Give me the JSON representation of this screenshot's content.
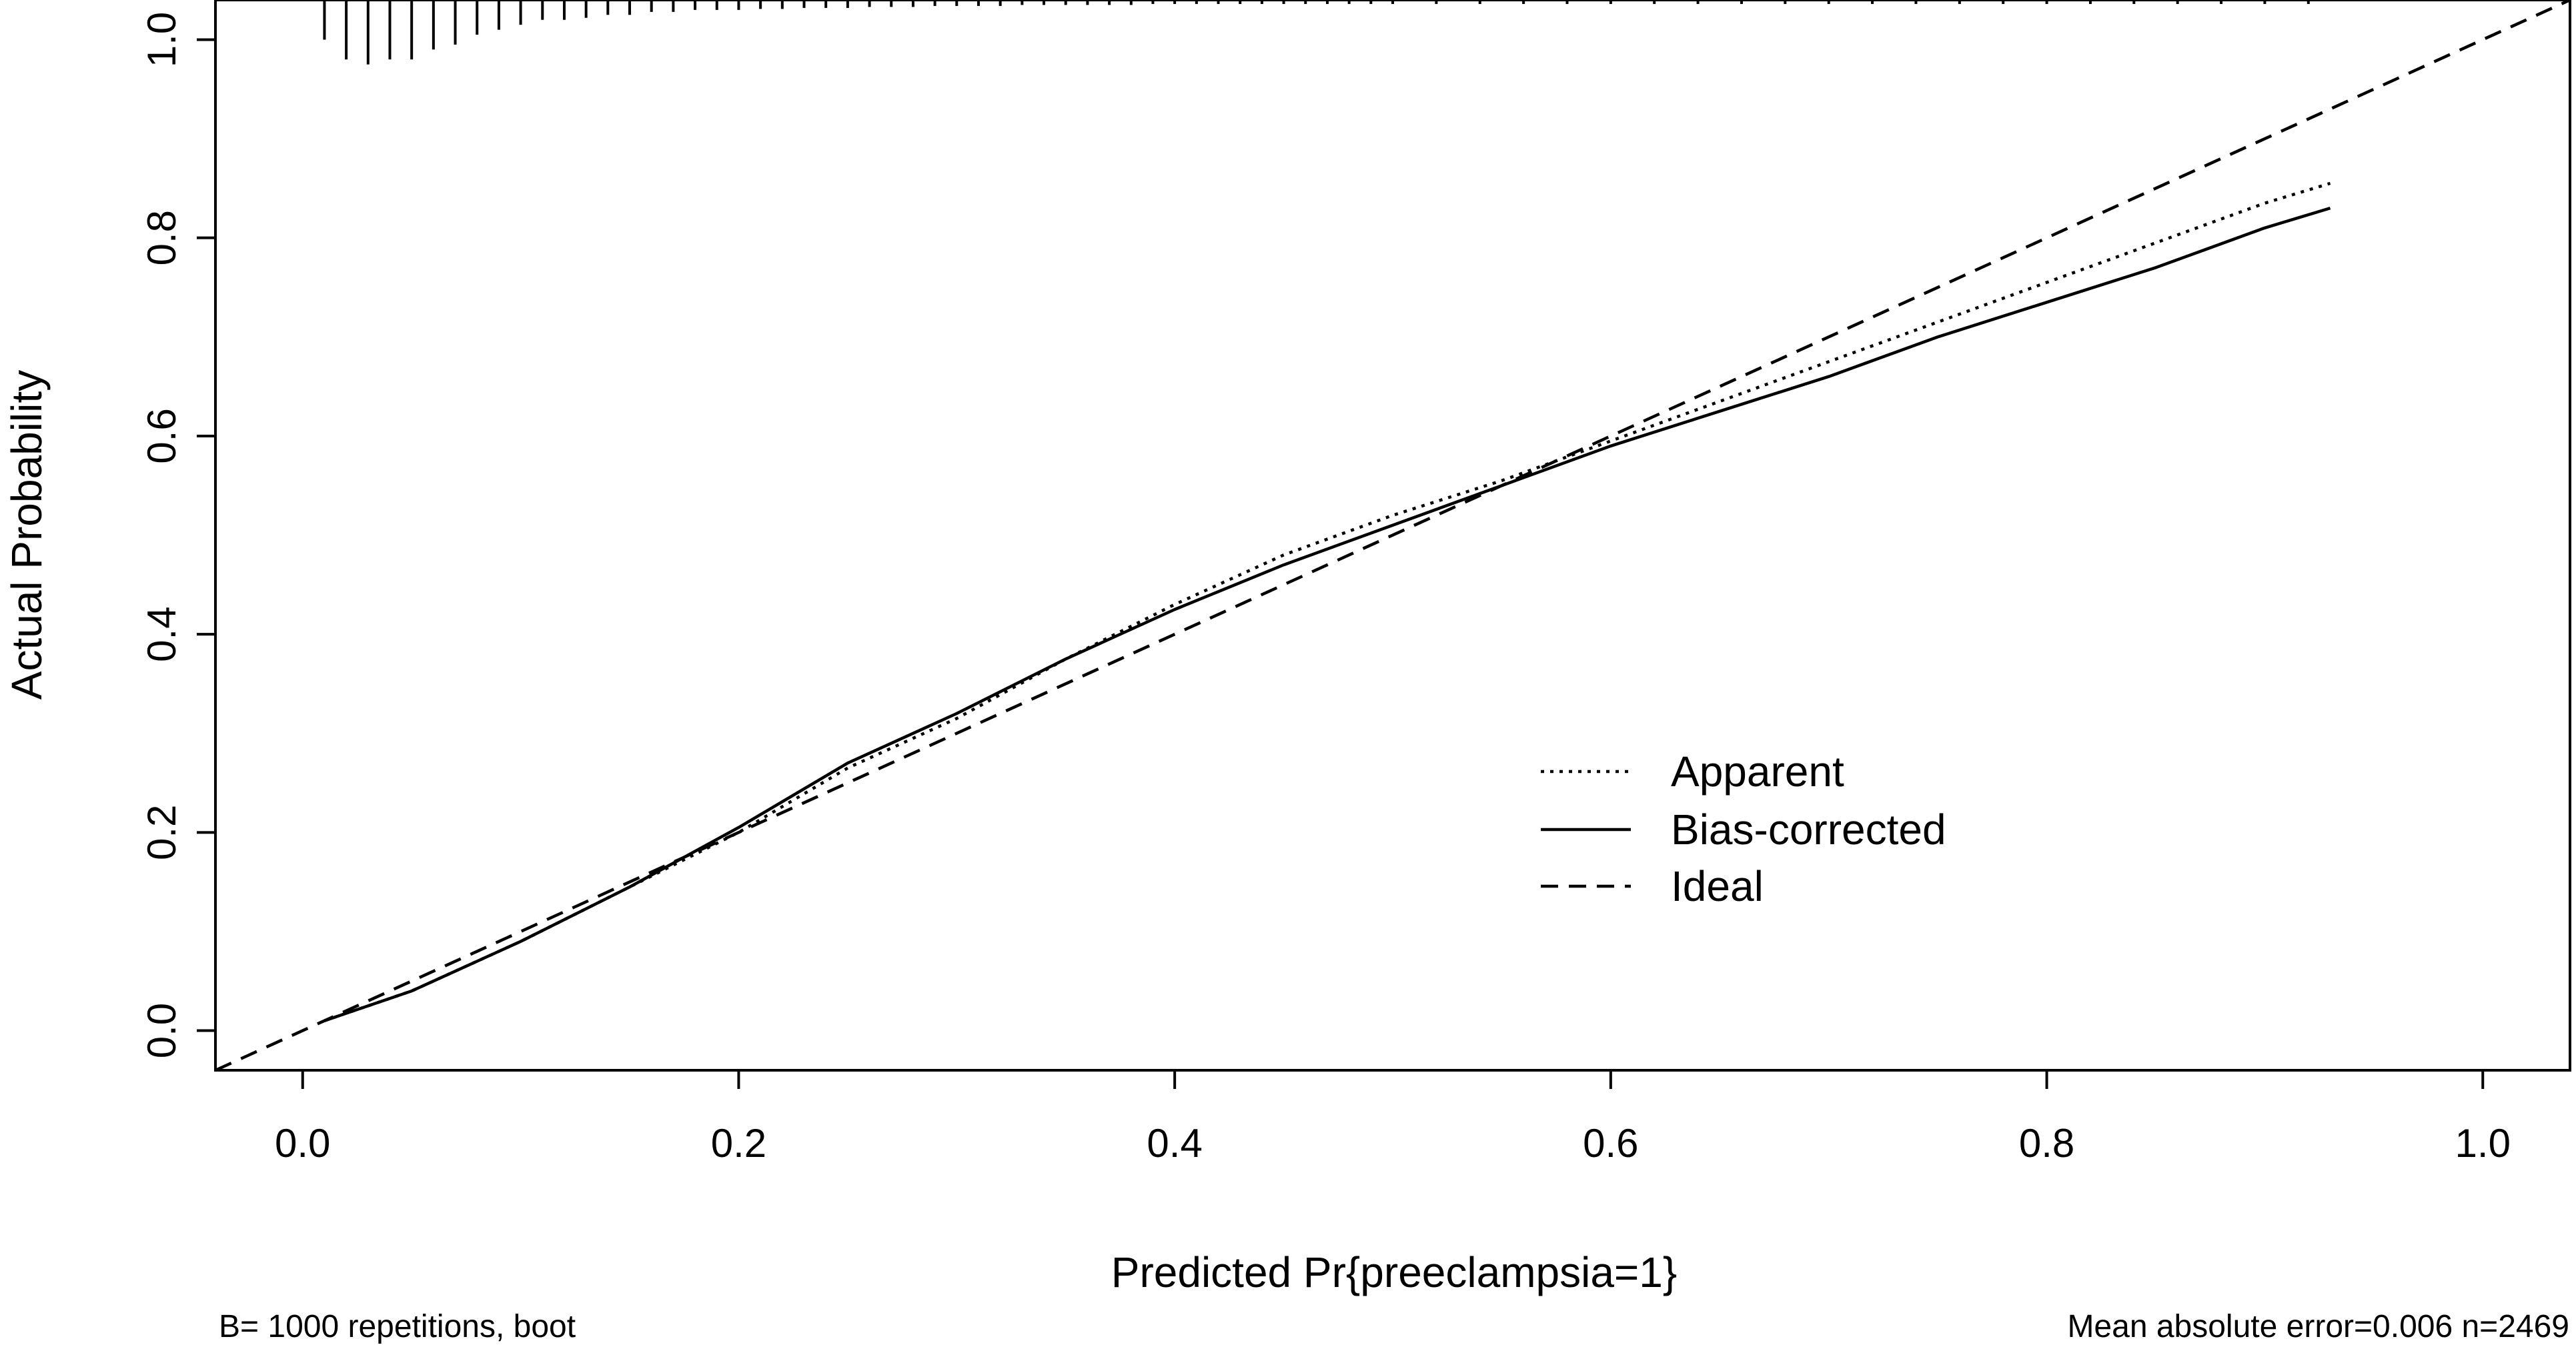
{
  "chart_data": {
    "type": "line",
    "xlabel": "Predicted Pr{preeclampsia=1}",
    "ylabel": "Actual Probability",
    "xlim": [
      -0.04,
      1.04
    ],
    "ylim": [
      -0.04,
      1.04
    ],
    "x_ticks": [
      "0.0",
      "0.2",
      "0.4",
      "0.6",
      "0.8",
      "1.0"
    ],
    "y_ticks": [
      "0.0",
      "0.2",
      "0.4",
      "0.6",
      "0.8",
      "1.0"
    ],
    "grid": false,
    "legend_position": "center-right",
    "series": [
      {
        "name": "Apparent",
        "style": "dotted",
        "points": [
          [
            0.01,
            0.01
          ],
          [
            0.05,
            0.04
          ],
          [
            0.1,
            0.09
          ],
          [
            0.15,
            0.145
          ],
          [
            0.2,
            0.2
          ],
          [
            0.25,
            0.265
          ],
          [
            0.3,
            0.315
          ],
          [
            0.35,
            0.375
          ],
          [
            0.4,
            0.43
          ],
          [
            0.45,
            0.48
          ],
          [
            0.5,
            0.52
          ],
          [
            0.55,
            0.555
          ],
          [
            0.6,
            0.595
          ],
          [
            0.65,
            0.635
          ],
          [
            0.7,
            0.675
          ],
          [
            0.75,
            0.715
          ],
          [
            0.8,
            0.755
          ],
          [
            0.85,
            0.795
          ],
          [
            0.9,
            0.835
          ],
          [
            0.93,
            0.855
          ]
        ]
      },
      {
        "name": "Bias-corrected",
        "style": "solid",
        "points": [
          [
            0.01,
            0.01
          ],
          [
            0.05,
            0.04
          ],
          [
            0.1,
            0.09
          ],
          [
            0.15,
            0.145
          ],
          [
            0.2,
            0.205
          ],
          [
            0.25,
            0.27
          ],
          [
            0.3,
            0.32
          ],
          [
            0.35,
            0.375
          ],
          [
            0.4,
            0.425
          ],
          [
            0.45,
            0.47
          ],
          [
            0.5,
            0.51
          ],
          [
            0.55,
            0.55
          ],
          [
            0.6,
            0.59
          ],
          [
            0.65,
            0.625
          ],
          [
            0.7,
            0.66
          ],
          [
            0.75,
            0.7
          ],
          [
            0.8,
            0.735
          ],
          [
            0.85,
            0.77
          ],
          [
            0.9,
            0.81
          ],
          [
            0.93,
            0.83
          ]
        ]
      },
      {
        "name": "Ideal",
        "style": "dashed",
        "points": [
          [
            -0.04,
            -0.04
          ],
          [
            1.04,
            1.04
          ]
        ]
      }
    ],
    "rug": {
      "x": [
        0.01,
        0.02,
        0.03,
        0.04,
        0.05,
        0.06,
        0.07,
        0.08,
        0.09,
        0.1,
        0.11,
        0.12,
        0.13,
        0.14,
        0.15,
        0.16,
        0.17,
        0.18,
        0.19,
        0.2,
        0.21,
        0.22,
        0.23,
        0.24,
        0.25,
        0.26,
        0.27,
        0.28,
        0.29,
        0.3,
        0.31,
        0.32,
        0.33,
        0.34,
        0.35,
        0.36,
        0.37,
        0.38,
        0.39,
        0.4,
        0.41,
        0.42,
        0.43,
        0.44,
        0.45,
        0.46,
        0.47,
        0.48,
        0.49,
        0.5,
        0.52,
        0.54,
        0.56,
        0.58,
        0.6,
        0.62,
        0.64,
        0.66,
        0.68,
        0.7,
        0.72,
        0.74,
        0.76,
        0.78,
        0.8,
        0.82,
        0.84,
        0.86,
        0.88,
        0.9,
        0.92
      ],
      "heights": [
        0.04,
        0.06,
        0.065,
        0.06,
        0.06,
        0.05,
        0.045,
        0.035,
        0.03,
        0.025,
        0.02,
        0.02,
        0.018,
        0.015,
        0.015,
        0.012,
        0.012,
        0.01,
        0.01,
        0.01,
        0.009,
        0.009,
        0.008,
        0.008,
        0.008,
        0.007,
        0.007,
        0.007,
        0.006,
        0.006,
        0.006,
        0.006,
        0.005,
        0.005,
        0.005,
        0.005,
        0.005,
        0.005,
        0.004,
        0.004,
        0.004,
        0.004,
        0.004,
        0.004,
        0.004,
        0.004,
        0.004,
        0.004,
        0.004,
        0.004,
        0.004,
        0.004,
        0.004,
        0.004,
        0.004,
        0.004,
        0.004,
        0.004,
        0.004,
        0.004,
        0.004,
        0.004,
        0.004,
        0.004,
        0.004,
        0.004,
        0.004,
        0.004,
        0.004,
        0.004,
        0.004
      ]
    },
    "footnote_left": "B= 1000 repetitions, boot",
    "footnote_right": "Mean absolute error=0.006 n=2469"
  },
  "colors": {
    "line": "#000000",
    "background": "#ffffff"
  }
}
